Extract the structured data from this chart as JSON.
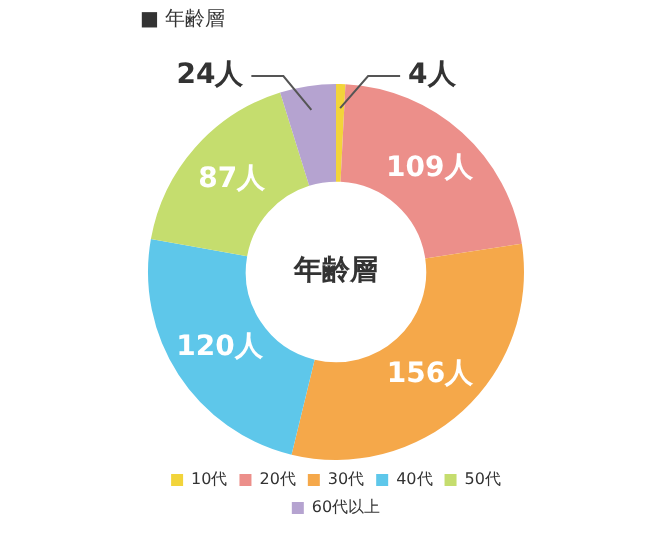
{
  "chart_data": {
    "type": "donut",
    "title": "■ 年齢層",
    "annotations": [
      "年齢層"
    ],
    "categories": [
      "10代",
      "20代",
      "30代",
      "40代",
      "50代",
      "60代以上"
    ],
    "values": [
      4,
      109,
      156,
      120,
      87,
      24
    ],
    "colors": [
      "#f2d43a",
      "#ec8f8a",
      "#f5a84a",
      "#5ec7ea",
      "#c5dd6e",
      "#b5a3d0"
    ],
    "value_labels": [
      "4人",
      "109人",
      "156人",
      "120人",
      "87人",
      "24人"
    ],
    "legend": "bottom"
  }
}
